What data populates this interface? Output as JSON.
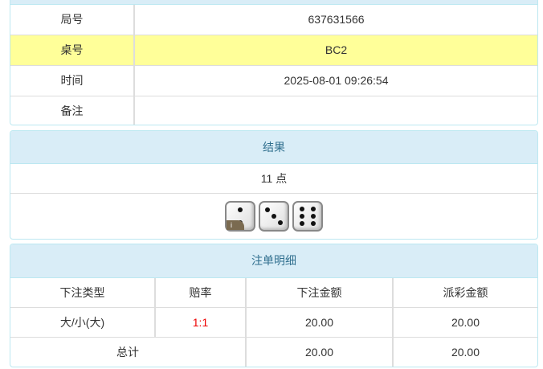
{
  "info": {
    "rows": [
      {
        "label": "局号",
        "value": "637631566"
      },
      {
        "label": "桌号",
        "value": "BC2"
      },
      {
        "label": "时间",
        "value": "2025-08-01 09:26:54"
      },
      {
        "label": "备注",
        "value": ""
      }
    ]
  },
  "result": {
    "title": "结果",
    "points": "11 点",
    "dice": [
      2,
      3,
      6
    ],
    "info_badge": "i"
  },
  "bets": {
    "title": "注单明细",
    "headers": [
      "下注类型",
      "赔率",
      "下注金额",
      "派彩金额"
    ],
    "rows": [
      {
        "type": "大/小(大)",
        "odds": "1:1",
        "amount": "20.00",
        "payout": "20.00"
      }
    ],
    "total": {
      "label": "总计",
      "amount": "20.00",
      "payout": "20.00"
    }
  },
  "colors": {
    "header_bg": "#d9edf7",
    "highlight": "#ffff99",
    "odds": "#ee0000"
  }
}
